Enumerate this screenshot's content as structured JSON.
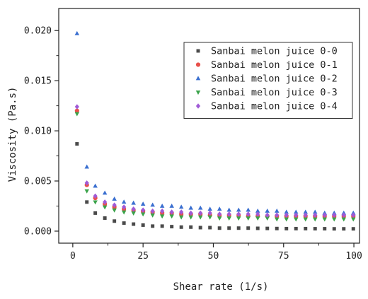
{
  "chart_data": {
    "type": "scatter",
    "title": "",
    "xlabel": "Shear rate (1/s)",
    "ylabel": "Viscosity (Pa.s)",
    "xlim": [
      -5,
      102
    ],
    "ylim": [
      -0.0012,
      0.0222
    ],
    "x_ticks": [
      "0",
      "25",
      "50",
      "75",
      "100"
    ],
    "y_ticks": [
      "0.000",
      "0.005",
      "0.010",
      "0.015",
      "0.020"
    ],
    "grid": false,
    "legend_position": "top-right",
    "x": [
      1.5,
      5,
      8,
      11.4,
      14.8,
      18.2,
      21.6,
      25,
      28.4,
      31.8,
      35.2,
      38.6,
      42,
      45.4,
      48.8,
      52.2,
      55.6,
      59,
      62.4,
      65.8,
      69.2,
      72.6,
      76,
      79.4,
      82.8,
      86.2,
      89.6,
      93,
      96.4,
      99.8
    ],
    "series": [
      {
        "name": "Sanbai melon juice 0-0",
        "marker": "square",
        "color": "#4a4a4a",
        "values": [
          0.0087,
          0.0029,
          0.0018,
          0.0013,
          0.001,
          0.0008,
          0.0007,
          0.0006,
          0.0005,
          0.0005,
          0.00045,
          0.0004,
          0.0004,
          0.00035,
          0.00035,
          0.0003,
          0.0003,
          0.0003,
          0.0003,
          0.00028,
          0.00027,
          0.00026,
          0.00025,
          0.00025,
          0.00025,
          0.00024,
          0.00024,
          0.00023,
          0.00023,
          0.00023
        ]
      },
      {
        "name": "Sanbai melon juice 0-1",
        "marker": "circle",
        "color": "#e8504a",
        "values": [
          0.012,
          0.0046,
          0.0033,
          0.0027,
          0.0024,
          0.0022,
          0.0021,
          0.002,
          0.0019,
          0.0018,
          0.0018,
          0.0017,
          0.0017,
          0.0017,
          0.0016,
          0.0016,
          0.0016,
          0.0016,
          0.0015,
          0.0015,
          0.0015,
          0.0015,
          0.0015,
          0.0015,
          0.0015,
          0.0015,
          0.0015,
          0.0015,
          0.0015,
          0.0015
        ]
      },
      {
        "name": "Sanbai melon juice 0-2",
        "marker": "triangle-up",
        "color": "#3a6fd0",
        "values": [
          0.0197,
          0.0064,
          0.0045,
          0.0038,
          0.0032,
          0.0029,
          0.0028,
          0.0027,
          0.0026,
          0.0025,
          0.0025,
          0.0024,
          0.0023,
          0.0023,
          0.0022,
          0.0022,
          0.0021,
          0.0021,
          0.0021,
          0.002,
          0.002,
          0.002,
          0.0019,
          0.0019,
          0.0019,
          0.0019,
          0.0018,
          0.0018,
          0.0018,
          0.0018
        ]
      },
      {
        "name": "Sanbai melon juice 0-3",
        "marker": "triangle-down",
        "color": "#3aa34a",
        "values": [
          0.0117,
          0.004,
          0.0029,
          0.0024,
          0.0021,
          0.0019,
          0.0018,
          0.0017,
          0.0016,
          0.0015,
          0.0015,
          0.0014,
          0.0014,
          0.0014,
          0.0014,
          0.0013,
          0.0013,
          0.0013,
          0.0013,
          0.0013,
          0.0013,
          0.0012,
          0.0012,
          0.0012,
          0.0012,
          0.0012,
          0.0012,
          0.0012,
          0.0012,
          0.0012
        ]
      },
      {
        "name": "Sanbai melon juice 0-4",
        "marker": "diamond",
        "color": "#a05ad6",
        "values": [
          0.0124,
          0.0048,
          0.0035,
          0.0029,
          0.0026,
          0.0024,
          0.0022,
          0.0021,
          0.002,
          0.002,
          0.0019,
          0.0019,
          0.0018,
          0.0018,
          0.0018,
          0.0017,
          0.0017,
          0.0017,
          0.0017,
          0.0017,
          0.0016,
          0.0016,
          0.0016,
          0.0016,
          0.0016,
          0.0016,
          0.0016,
          0.0016,
          0.0016,
          0.0016
        ]
      }
    ]
  }
}
